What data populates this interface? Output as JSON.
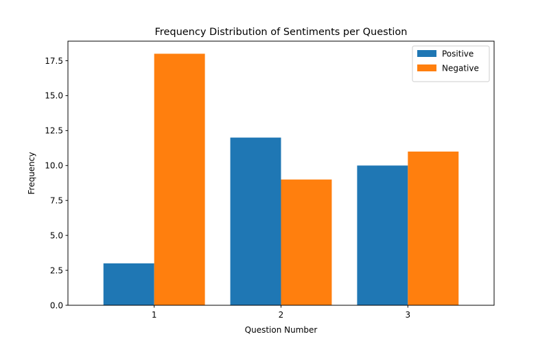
{
  "chart_data": {
    "type": "bar",
    "title": "Frequency Distribution of Sentiments per Question",
    "xlabel": "Question Number",
    "ylabel": "Frequency",
    "categories": [
      "1",
      "2",
      "3"
    ],
    "series": [
      {
        "name": "Positive",
        "values": [
          3,
          12,
          10
        ],
        "color": "#1f77b4"
      },
      {
        "name": "Negative",
        "values": [
          18,
          9,
          11
        ],
        "color": "#ff7f0e"
      }
    ],
    "ylim": [
      0,
      18.9
    ],
    "yticks": [
      0.0,
      2.5,
      5.0,
      7.5,
      10.0,
      12.5,
      15.0,
      17.5
    ],
    "ytick_labels": [
      "0.0",
      "2.5",
      "5.0",
      "7.5",
      "10.0",
      "12.5",
      "15.0",
      "17.5"
    ],
    "grid": false,
    "legend_position": "top-right"
  }
}
